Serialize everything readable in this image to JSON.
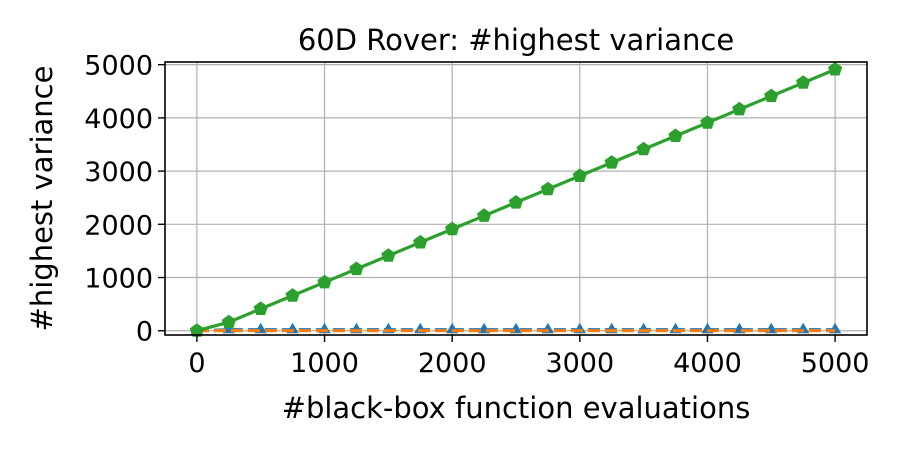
{
  "chart_data": {
    "type": "line",
    "title": "60D Rover: #highest variance",
    "xlabel": "#black-box function evaluations",
    "ylabel": "#highest variance",
    "xlim": [
      -250,
      5250
    ],
    "ylim": [
      -80,
      5050
    ],
    "xticks": [
      0,
      1000,
      2000,
      3000,
      4000,
      5000
    ],
    "yticks": [
      0,
      1000,
      2000,
      3000,
      4000,
      5000
    ],
    "grid": true,
    "series": [
      {
        "color": "#1f77b4",
        "line_style": "dashed",
        "marker": "triangle",
        "x": [
          0,
          250,
          500,
          750,
          1000,
          1250,
          1500,
          1750,
          2000,
          2250,
          2500,
          2750,
          3000,
          3250,
          3500,
          3750,
          4000,
          4250,
          4500,
          4750,
          5000
        ],
        "y": [
          0,
          20,
          20,
          20,
          20,
          20,
          20,
          20,
          20,
          20,
          20,
          20,
          20,
          20,
          20,
          20,
          20,
          20,
          20,
          20,
          20
        ]
      },
      {
        "color": "#ff7f0e",
        "line_style": "dashed",
        "marker": "none",
        "x": [
          0,
          5000
        ],
        "y": [
          0,
          0
        ]
      },
      {
        "color": "#2ca02c",
        "line_style": "solid",
        "marker": "pentagon",
        "x": [
          0,
          250,
          500,
          750,
          1000,
          1250,
          1500,
          1750,
          2000,
          2250,
          2500,
          2750,
          3000,
          3250,
          3500,
          3750,
          4000,
          4250,
          4500,
          4750,
          5000
        ],
        "y": [
          0,
          160,
          410,
          660,
          910,
          1160,
          1410,
          1660,
          1910,
          2160,
          2410,
          2660,
          2910,
          3160,
          3410,
          3660,
          3910,
          4160,
          4410,
          4660,
          4910
        ]
      }
    ]
  }
}
